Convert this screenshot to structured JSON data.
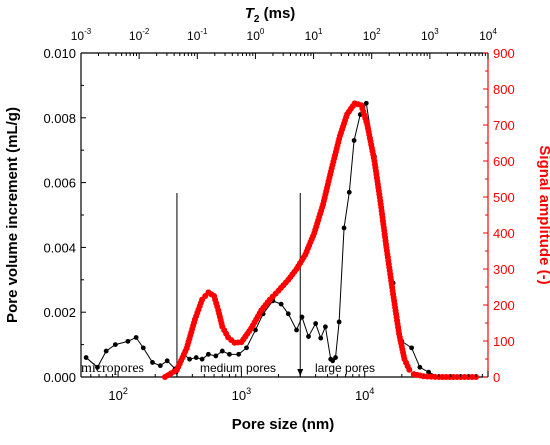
{
  "colors": {
    "black_series": "#000000",
    "red_series": "#ff0000",
    "axis": "#000000",
    "right_axis": "#ff0000"
  },
  "labels": {
    "top_axis_prefix": "T",
    "top_axis_subscript": "2",
    "top_axis_suffix": " (ms)",
    "x_label": "Pore size (nm)",
    "y_left_label": "Pore volume increment (mL/g)",
    "y_right_label": "Signal amplitude (-)",
    "annotation_micropores": "micropores",
    "annotation_medium": "medium pores",
    "annotation_large": "large pores"
  },
  "ticks": {
    "left": [
      "0.000",
      "0.002",
      "0.004",
      "0.006",
      "0.008",
      "0.010"
    ],
    "right": [
      "0",
      "100",
      "200",
      "300",
      "400",
      "500",
      "600",
      "700",
      "800",
      "900"
    ],
    "bottom_base": [
      "10",
      "10",
      "10"
    ],
    "bottom_exp": [
      "2",
      "3",
      "4"
    ],
    "top_base": [
      "10",
      "10",
      "10",
      "10",
      "10",
      "10",
      "10",
      "10"
    ],
    "top_exp": [
      "-3",
      "-2",
      "-1",
      "0",
      "1",
      "2",
      "3",
      "4"
    ]
  },
  "chart_data": {
    "type": "line",
    "title": "",
    "xlabel": "Pore size (nm)",
    "ylabel": "Pore volume increment (mL/g)",
    "y2label": "Signal amplitude (-)",
    "top_xlabel": "T2 (ms)",
    "x_scale": "log",
    "xlim": [
      50,
      100000
    ],
    "ylim": [
      0,
      0.01
    ],
    "y2lim": [
      0,
      900
    ],
    "top_xlim": [
      0.001,
      10000
    ],
    "grid": false,
    "legend": "none",
    "boundaries_nm": [
      300,
      3000
    ],
    "series": [
      {
        "axis": "left",
        "color": "#000000",
        "marker": "square-dot",
        "x": [
          55,
          68,
          80,
          95,
          120,
          140,
          160,
          190,
          220,
          250,
          290,
          340,
          380,
          430,
          480,
          540,
          620,
          700,
          800,
          950,
          1100,
          1300,
          1500,
          1800,
          2100,
          2400,
          2800,
          3100,
          3500,
          4000,
          4400,
          4800,
          5300,
          5500,
          5800,
          6200,
          6800,
          7500,
          8200,
          9200,
          10300,
          12000,
          14000,
          17000,
          20000,
          24000,
          28000,
          33000,
          40000
        ],
        "y": [
          0.0006,
          0.0003,
          0.0008,
          0.001,
          0.0011,
          0.00122,
          0.0009,
          0.00045,
          0.00035,
          0.0005,
          0.00025,
          0.0007,
          0.00055,
          0.0006,
          0.00055,
          0.0007,
          0.00065,
          0.0008,
          0.0007,
          0.0007,
          0.0009,
          0.00145,
          0.00195,
          0.00235,
          0.00225,
          0.00195,
          0.00145,
          0.00185,
          0.00125,
          0.00165,
          0.0012,
          0.00155,
          0.00055,
          0.0005,
          0.0006,
          0.0017,
          0.0046,
          0.0057,
          0.0073,
          0.0081,
          0.00845,
          0.0068,
          0.0048,
          0.0029,
          0.0011,
          0.0009,
          0.0003,
          0.00015,
          0
        ]
      },
      {
        "axis": "right",
        "color": "#ff0000",
        "marker": "dot",
        "x": [
          240,
          300,
          360,
          420,
          480,
          540,
          600,
          650,
          700,
          780,
          880,
          1000,
          1200,
          1450,
          1700,
          2000,
          2400,
          2800,
          3300,
          3900,
          4600,
          5400,
          6300,
          7200,
          8300,
          9400,
          10500,
          12000,
          13500,
          15000,
          17000,
          19000,
          21000,
          23000,
          25000,
          30000,
          40000,
          60000,
          80000
        ],
        "y": [
          0,
          20,
          80,
          160,
          215,
          235,
          225,
          185,
          140,
          110,
          95,
          97,
          135,
          185,
          215,
          240,
          270,
          300,
          340,
          400,
          480,
          580,
          670,
          730,
          760,
          755,
          700,
          600,
          480,
          360,
          230,
          120,
          50,
          20,
          8,
          2,
          0,
          0,
          0
        ]
      }
    ]
  }
}
